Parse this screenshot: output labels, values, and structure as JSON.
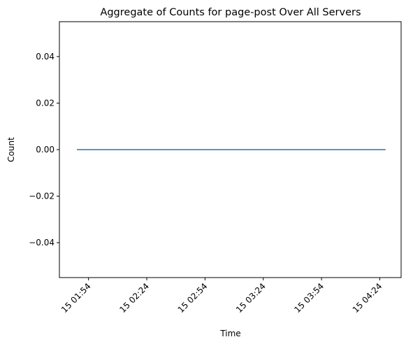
{
  "chart_data": {
    "type": "line",
    "title": "Aggregate of Counts for page-post Over All Servers",
    "xlabel": "Time",
    "ylabel": "Count",
    "x": [
      "15 01:48",
      "15 04:27"
    ],
    "series": [
      {
        "values": [
          0.0,
          0.0
        ],
        "color": "#1f77b4"
      }
    ],
    "xlim": [
      "15 01:39",
      "15 04:35"
    ],
    "ylim": [
      -0.055,
      0.055
    ],
    "xticks": [
      "15 01:54",
      "15 02:24",
      "15 02:54",
      "15 03:24",
      "15 03:54",
      "15 04:24"
    ],
    "yticks": [
      {
        "value": 0.04,
        "label": "0.04"
      },
      {
        "value": 0.02,
        "label": "0.02"
      },
      {
        "value": 0.0,
        "label": "0.00"
      },
      {
        "value": -0.02,
        "label": "−0.02"
      },
      {
        "value": -0.04,
        "label": "−0.04"
      }
    ],
    "grid": false,
    "legend": "none"
  }
}
